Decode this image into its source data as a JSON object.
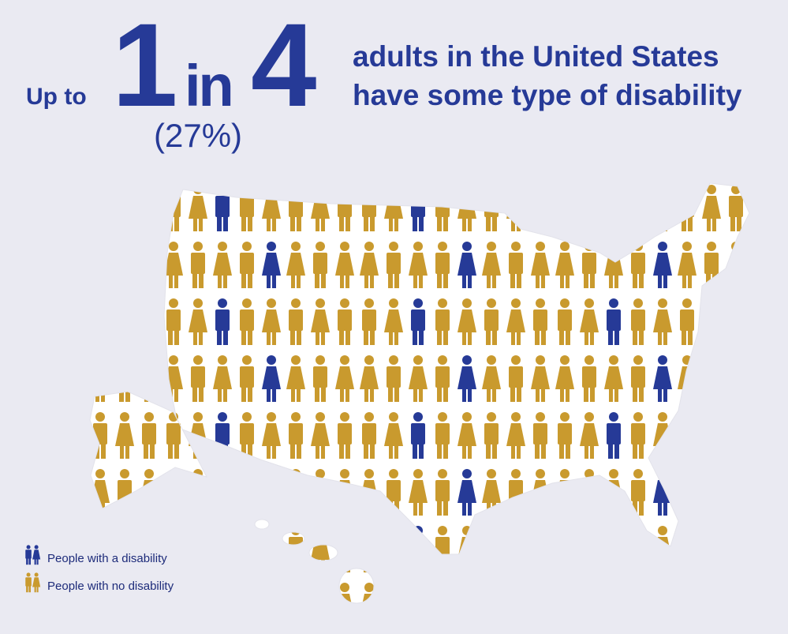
{
  "headline": {
    "prefix": "Up to",
    "numerator": "1",
    "middle": "in",
    "denominator": "4",
    "percent": "(27%)",
    "line1": "adults in the United States",
    "line2": "have some type of disability"
  },
  "legend": {
    "items": [
      "People with a disability",
      "People with no disability"
    ]
  }
}
